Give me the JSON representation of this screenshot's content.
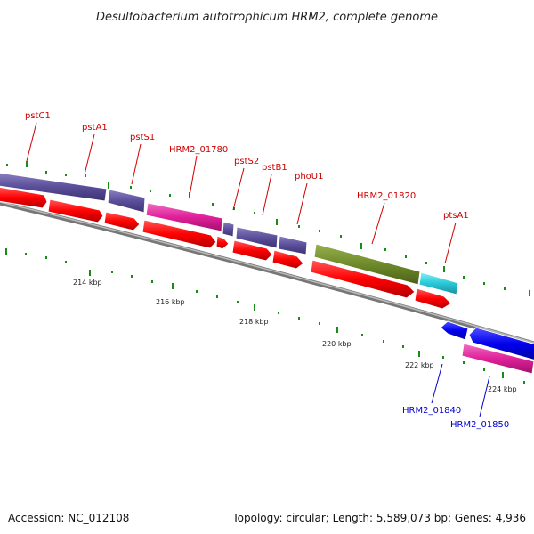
{
  "header": {
    "title": "Desulfobacterium autotrophicum HRM2, complete genome"
  },
  "footer": {
    "accession": "Accession: NC_012108",
    "topology": "Topology: circular; Length: 5,589,073 bp; Genes: 4,936"
  },
  "ticks": {
    "t214": "214 kbp",
    "t216": "216 kbp",
    "t218": "218 kbp",
    "t220": "220 kbp",
    "t222": "222 kbp",
    "t224": "224 kbp"
  },
  "genes": {
    "pstC1": "pstC1",
    "pstA1": "pstA1",
    "pstS1": "pstS1",
    "hrm2_01780": "HRM2_01780",
    "pstS2": "pstS2",
    "pstB1": "pstB1",
    "phoU1": "phoU1",
    "hrm2_01820": "HRM2_01820",
    "ptsA1": "ptsA1",
    "hrm2_01840": "HRM2_01840",
    "hrm2_01850": "HRM2_01850"
  },
  "colors": {
    "forward_label": "#cc0000",
    "reverse_label": "#0000cc",
    "cds": "#ff0000",
    "purple": "#5a4e9a",
    "pink": "#e0209a",
    "olive": "#6e8a2a",
    "cyan": "#28c8d8",
    "blue": "#0000ee",
    "backbone": "#888888",
    "tick": "#1a8a1a"
  }
}
